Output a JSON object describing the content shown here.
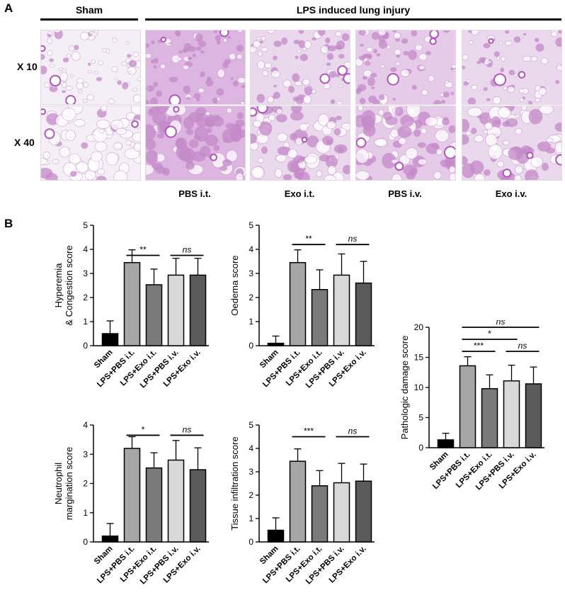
{
  "panel_a": {
    "letter": "A",
    "group_sham": "Sham",
    "group_lps": "LPS induced lung injury",
    "row_labels": [
      "X 10",
      "X 40"
    ],
    "column_labels": [
      "PBS i.t.",
      "Exo i.t.",
      "PBS i.v.",
      "Exo i.v."
    ]
  },
  "panel_b": {
    "letter": "B"
  },
  "colors": {
    "sham": "#000000",
    "lps_pbs_it": "#a6a6a6",
    "lps_exo_it": "#7a7a7a",
    "lps_pbs_iv": "#d9d9d9",
    "lps_exo_iv": "#5a5a5a",
    "stain_light": "#e9d3ec",
    "stain_dark": "#c48ac9"
  },
  "chart_data": [
    {
      "type": "bar",
      "ylabel": [
        "Hyperemia",
        "& Congestion score"
      ],
      "categories": [
        "Sham",
        "LPS+PBS i.t.",
        "LPS+Exo i.t.",
        "LPS+PBS i.v.",
        "LPS+Exo i.v."
      ],
      "values": [
        0.5,
        3.45,
        2.53,
        2.93,
        2.93
      ],
      "errors": [
        0.53,
        0.53,
        0.65,
        0.7,
        0.7
      ],
      "ylim": [
        0,
        5
      ],
      "yticks": [
        0,
        1,
        2,
        3,
        4,
        5
      ],
      "significance": [
        {
          "from": 1,
          "to": 2,
          "label": "**",
          "y": 3.75
        },
        {
          "from": 3,
          "to": 4,
          "label": "ns",
          "y": 3.75
        }
      ]
    },
    {
      "type": "bar",
      "ylabel": [
        "Oedema score"
      ],
      "categories": [
        "Sham",
        "LPS+PBS i.t.",
        "LPS+Exo i.t.",
        "LPS+PBS i.v.",
        "LPS+Exo i.v."
      ],
      "values": [
        0.1,
        3.45,
        2.33,
        2.93,
        2.6
      ],
      "errors": [
        0.3,
        0.53,
        0.82,
        0.88,
        0.9
      ],
      "ylim": [
        0,
        5
      ],
      "yticks": [
        0,
        1,
        2,
        3,
        4,
        5
      ],
      "significance": [
        {
          "from": 1,
          "to": 2,
          "label": "**",
          "y": 4.2
        },
        {
          "from": 3,
          "to": 4,
          "label": "ns",
          "y": 4.2
        }
      ]
    },
    {
      "type": "bar",
      "ylabel": [
        "Pathologic damage score"
      ],
      "categories": [
        "Sham",
        "LPS+PBS i.t.",
        "LPS+Exo i.t.",
        "LPS+PBS i.v.",
        "LPS+Exo i.v."
      ],
      "values": [
        1.3,
        13.6,
        9.8,
        11.1,
        10.6
      ],
      "errors": [
        1.1,
        1.5,
        2.3,
        2.6,
        2.8
      ],
      "ylim": [
        0,
        20
      ],
      "yticks": [
        0,
        5,
        10,
        15,
        20
      ],
      "significance": [
        {
          "from": 1,
          "to": 2,
          "label": "***",
          "y": 16.0
        },
        {
          "from": 3,
          "to": 4,
          "label": "ns",
          "y": 16.0
        },
        {
          "from": 1,
          "to": 3,
          "label": "*",
          "y": 18.0
        },
        {
          "from": 1,
          "to": 4,
          "label": "ns",
          "y": 20.0
        }
      ]
    },
    {
      "type": "bar",
      "ylabel": [
        "Neutrophil",
        "margination score"
      ],
      "categories": [
        "Sham",
        "LPS+PBS i.t.",
        "LPS+Exo i.t.",
        "LPS+PBS i.v.",
        "LPS+Exo i.v."
      ],
      "values": [
        0.2,
        3.2,
        2.53,
        2.8,
        2.47
      ],
      "errors": [
        0.43,
        0.4,
        0.52,
        0.67,
        0.75
      ],
      "ylim": [
        0,
        4
      ],
      "yticks": [
        0,
        1,
        2,
        3,
        4
      ],
      "significance": [
        {
          "from": 1,
          "to": 2,
          "label": "*",
          "y": 3.65
        },
        {
          "from": 3,
          "to": 4,
          "label": "ns",
          "y": 3.65
        }
      ]
    },
    {
      "type": "bar",
      "ylabel": [
        "Tissue infiltration score"
      ],
      "categories": [
        "Sham",
        "LPS+PBS i.t.",
        "LPS+Exo i.t.",
        "LPS+PBS i.v.",
        "LPS+Exo i.v."
      ],
      "values": [
        0.5,
        3.45,
        2.4,
        2.53,
        2.6
      ],
      "errors": [
        0.53,
        0.53,
        0.65,
        0.83,
        0.73
      ],
      "ylim": [
        0,
        5
      ],
      "yticks": [
        0,
        1,
        2,
        3,
        4,
        5
      ],
      "significance": [
        {
          "from": 1,
          "to": 2,
          "label": "***",
          "y": 4.5
        },
        {
          "from": 3,
          "to": 4,
          "label": "ns",
          "y": 4.5
        }
      ]
    }
  ]
}
